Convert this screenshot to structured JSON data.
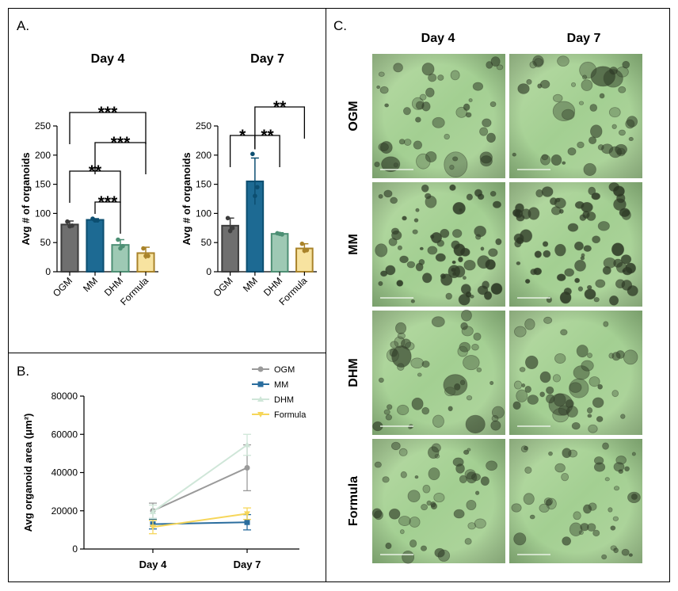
{
  "panels": {
    "a": "A.",
    "b": "B.",
    "c": "C."
  },
  "chart_data": [
    {
      "id": "a-day4",
      "type": "bar",
      "title": "Day 4",
      "ylabel": "Avg # of organoids",
      "categories": [
        "OGM",
        "MM",
        "DHM",
        "Formula"
      ],
      "values": [
        81,
        89,
        46,
        32
      ],
      "errors": [
        6,
        2,
        9,
        10
      ],
      "points": [
        [
          86,
          79,
          78
        ],
        [
          91,
          88,
          88
        ],
        [
          55,
          44,
          40
        ],
        [
          40,
          27,
          27
        ]
      ],
      "colors": [
        "#6f6f6f",
        "#1d6a93",
        "#9ec9b4",
        "#f7e3a0"
      ],
      "edge_colors": [
        "#3c3c3c",
        "#0c4e70",
        "#4d8f74",
        "#a9832a"
      ],
      "ylim": [
        0,
        250
      ],
      "yticks": [
        0,
        50,
        100,
        150,
        200,
        250
      ],
      "significance": [
        {
          "from": 0,
          "to": 3,
          "label": "***"
        },
        {
          "from": 1,
          "to": 3,
          "label": "***"
        },
        {
          "from": 0,
          "to": 2,
          "label": "**"
        },
        {
          "from": 1,
          "to": 2,
          "label": "***"
        }
      ]
    },
    {
      "id": "a-day7",
      "type": "bar",
      "title": "Day 7",
      "ylabel": "Avg # of organoids",
      "categories": [
        "OGM",
        "MM",
        "DHM",
        "Formula"
      ],
      "values": [
        79,
        155,
        65,
        40
      ],
      "errors": [
        13,
        40,
        2,
        8
      ],
      "points": [
        [
          92,
          75,
          70
        ],
        [
          202,
          145,
          130
        ],
        [
          66,
          64,
          65
        ],
        [
          48,
          37,
          36
        ]
      ],
      "colors": [
        "#6f6f6f",
        "#1d6a93",
        "#9ec9b4",
        "#f7e3a0"
      ],
      "edge_colors": [
        "#3c3c3c",
        "#0c4e70",
        "#4d8f74",
        "#a9832a"
      ],
      "ylim": [
        0,
        250
      ],
      "yticks": [
        0,
        50,
        100,
        150,
        200,
        250
      ],
      "significance": [
        {
          "from": 1,
          "to": 3,
          "label": "**"
        },
        {
          "from": 0,
          "to": 1,
          "label": "*"
        },
        {
          "from": 1,
          "to": 2,
          "label": "**"
        }
      ]
    },
    {
      "id": "b-area",
      "type": "line",
      "ylabel": "Avg organoid area (μm²)",
      "x": [
        "Day 4",
        "Day 7"
      ],
      "ylim": [
        0,
        80000
      ],
      "yticks": [
        0,
        20000,
        40000,
        60000,
        80000
      ],
      "series": [
        {
          "name": "OGM",
          "values": [
            20000,
            42500
          ],
          "errors": [
            4000,
            12000
          ],
          "color": "#9a9a9a",
          "marker": "circle"
        },
        {
          "name": "MM",
          "values": [
            13000,
            14000
          ],
          "errors": [
            2500,
            4000
          ],
          "color": "#2a6d9e",
          "marker": "square"
        },
        {
          "name": "DHM",
          "values": [
            19500,
            54500
          ],
          "errors": [
            3500,
            5500
          ],
          "color": "#cfe6d8",
          "marker": "triangle"
        },
        {
          "name": "Formula",
          "values": [
            11500,
            18500
          ],
          "errors": [
            3500,
            3000
          ],
          "color": "#f6d65a",
          "marker": "triangle-down"
        }
      ],
      "legend": "top-right"
    }
  ],
  "micrographs": {
    "columns": [
      "Day 4",
      "Day 7"
    ],
    "rows": [
      "OGM",
      "MM",
      "DHM",
      "Formula"
    ]
  }
}
